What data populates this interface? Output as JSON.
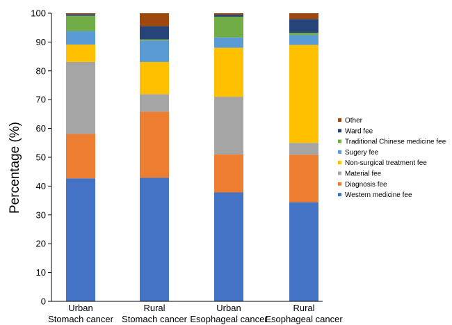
{
  "chart_data": {
    "type": "bar",
    "stacked": true,
    "title": "",
    "xlabel": "",
    "ylabel": "Percentage (%)",
    "ylim": [
      0,
      100
    ],
    "yticks": [
      0,
      10,
      20,
      30,
      40,
      50,
      60,
      70,
      80,
      90,
      100
    ],
    "categories": [
      [
        "Urban",
        "Stomach cancer"
      ],
      [
        "Rural",
        "Stomach cancer"
      ],
      [
        "Urban",
        "Esophageal cancer"
      ],
      [
        "Rural",
        "Esophageal cancer"
      ]
    ],
    "legend_position": "right",
    "series": [
      {
        "name": "Western medicine fee",
        "color": "#4472C4",
        "values": [
          42.7,
          42.9,
          37.8,
          34.4
        ]
      },
      {
        "name": "Diagnosis fee",
        "color": "#ED7D31",
        "values": [
          15.4,
          22.9,
          13.2,
          16.5
        ]
      },
      {
        "name": "Material fee",
        "color": "#A5A5A5",
        "values": [
          25.0,
          6.1,
          20.0,
          4.1
        ]
      },
      {
        "name": "Non-surgical treatment fee",
        "color": "#FFC000",
        "values": [
          6.0,
          11.2,
          17.0,
          34.0
        ]
      },
      {
        "name": "Sugery fee",
        "color": "#5B9BD5",
        "values": [
          4.7,
          7.4,
          3.6,
          3.4
        ]
      },
      {
        "name": "Traditional Chinese medicine fee",
        "color": "#70AD47",
        "values": [
          5.3,
          0.4,
          7.2,
          0.8
        ]
      },
      {
        "name": "Ward fee",
        "color": "#264478",
        "values": [
          0.5,
          4.6,
          0.7,
          4.8
        ]
      },
      {
        "name": "Other",
        "color": "#9E480E",
        "values": [
          0.4,
          4.5,
          0.5,
          2.0
        ]
      }
    ]
  }
}
